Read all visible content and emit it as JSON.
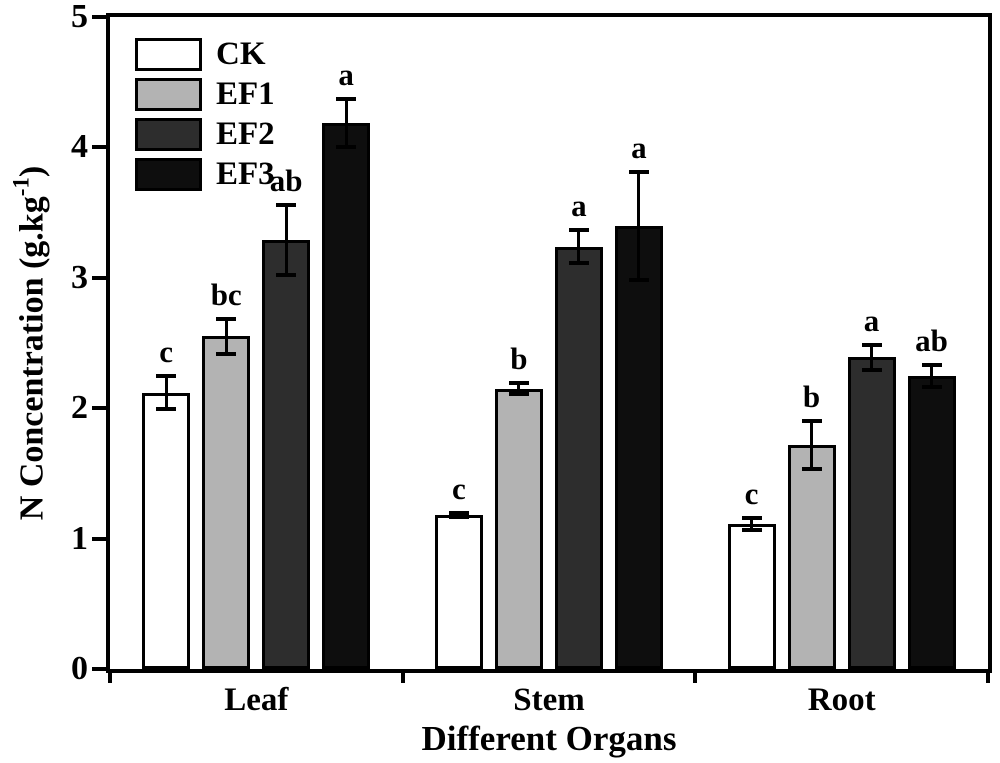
{
  "chart_data": {
    "type": "bar",
    "title": "",
    "xlabel": "Different Organs",
    "ylabel_main": "N Concentration (g.kg",
    "ylabel_sup": "-1",
    "ylabel_close": ")",
    "ylim": [
      0,
      5
    ],
    "yticks": [
      0,
      1,
      2,
      3,
      4,
      5
    ],
    "categories": [
      "Leaf",
      "Stem",
      "Root"
    ],
    "series": [
      {
        "name": "CK",
        "color": "#ffffff",
        "values": [
          2.12,
          1.18,
          1.11
        ],
        "errors": [
          0.14,
          0.03,
          0.06
        ],
        "sig_letters": [
          "c",
          "c",
          "c"
        ]
      },
      {
        "name": "EF1",
        "color": "#b3b3b3",
        "values": [
          2.55,
          2.15,
          1.72
        ],
        "errors": [
          0.15,
          0.06,
          0.2
        ],
        "sig_letters": [
          "bc",
          "b",
          "b"
        ]
      },
      {
        "name": "EF2",
        "color": "#2d2d2d",
        "values": [
          3.29,
          3.24,
          2.39
        ],
        "errors": [
          0.28,
          0.14,
          0.11
        ],
        "sig_letters": [
          "ab",
          "a",
          "a"
        ]
      },
      {
        "name": "EF3",
        "color": "#0e0e0e",
        "values": [
          4.19,
          3.4,
          2.25
        ],
        "errors": [
          0.2,
          0.43,
          0.1
        ],
        "sig_letters": [
          "a",
          "a",
          "ab"
        ]
      }
    ],
    "legend_position": "top-left",
    "grid": false,
    "axis_color": "#000000",
    "background": "#ffffff"
  }
}
